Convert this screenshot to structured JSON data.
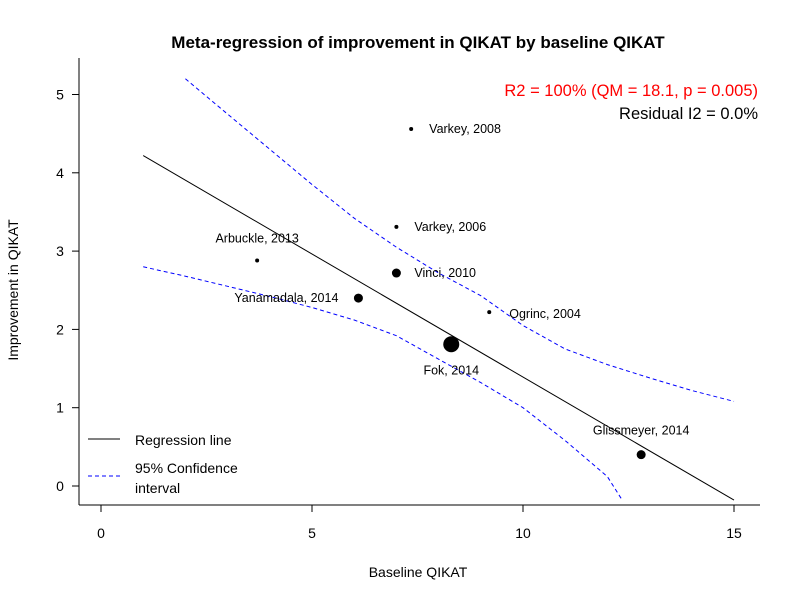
{
  "chart_data": {
    "type": "scatter",
    "title": "Meta-regression of improvement in QIKAT by baseline QIKAT",
    "xlabel": "Baseline QIKAT",
    "ylabel": "Improvement in QIKAT",
    "xlim": [
      0,
      15
    ],
    "ylim": [
      0,
      5
    ],
    "x_ticks": [
      "0",
      "5",
      "10",
      "15"
    ],
    "y_ticks": [
      "0",
      "1",
      "2",
      "3",
      "4",
      "5"
    ],
    "grid": false,
    "points": [
      {
        "label": "Varkey, 2008",
        "x": 7.35,
        "y": 4.56,
        "weight": "small"
      },
      {
        "label": "Varkey, 2006",
        "x": 7.0,
        "y": 3.31,
        "weight": "small"
      },
      {
        "label": "Arbuckle, 2013",
        "x": 3.7,
        "y": 2.88,
        "weight": "small"
      },
      {
        "label": "Vinci, 2010",
        "x": 7.0,
        "y": 2.72,
        "weight": "medium"
      },
      {
        "label": "Yanamadala, 2014",
        "x": 6.1,
        "y": 2.4,
        "weight": "medium"
      },
      {
        "label": "Ogrinc, 2004",
        "x": 9.2,
        "y": 2.22,
        "weight": "small"
      },
      {
        "label": "Fok, 2014",
        "x": 8.3,
        "y": 1.81,
        "weight": "large"
      },
      {
        "label": "Glissmeyer, 2014",
        "x": 12.8,
        "y": 0.4,
        "weight": "medium"
      }
    ],
    "regression_line": {
      "x": [
        1.0,
        15.0
      ],
      "y": [
        4.22,
        -0.18
      ]
    },
    "ci_upper": {
      "x": [
        2.0,
        3.0,
        4.0,
        5.0,
        6.0,
        7.0,
        8.0,
        9.0,
        10.0,
        11.0,
        12.0,
        13.0,
        14.0,
        15.0
      ],
      "y": [
        5.2,
        4.75,
        4.3,
        3.85,
        3.42,
        3.05,
        2.72,
        2.43,
        2.05,
        1.75,
        1.55,
        1.38,
        1.22,
        1.08
      ]
    },
    "ci_lower": {
      "x": [
        1.0,
        2.0,
        3.0,
        4.0,
        5.0,
        6.0,
        7.0,
        8.0,
        9.0,
        10.0,
        11.0,
        12.0,
        12.35
      ],
      "y": [
        2.8,
        2.68,
        2.55,
        2.42,
        2.28,
        2.12,
        1.92,
        1.62,
        1.32,
        1.0,
        0.58,
        0.12,
        -0.18
      ]
    },
    "annotations": {
      "r2": "R2 = 100% (QM = 18.1, p = 0.005)",
      "residual": "Residual I2 = 0.0%"
    },
    "legend": {
      "placement": "bottom-left",
      "entries": [
        {
          "label": "Regression line",
          "style": "solid",
          "color": "#000000"
        },
        {
          "label": "95% Confidence",
          "label2": "interval",
          "style": "dashed",
          "color": "#0000ff"
        }
      ]
    },
    "colors": {
      "points": "#000000",
      "ci": "#0000ff",
      "stat_highlight": "#ff0000"
    }
  }
}
